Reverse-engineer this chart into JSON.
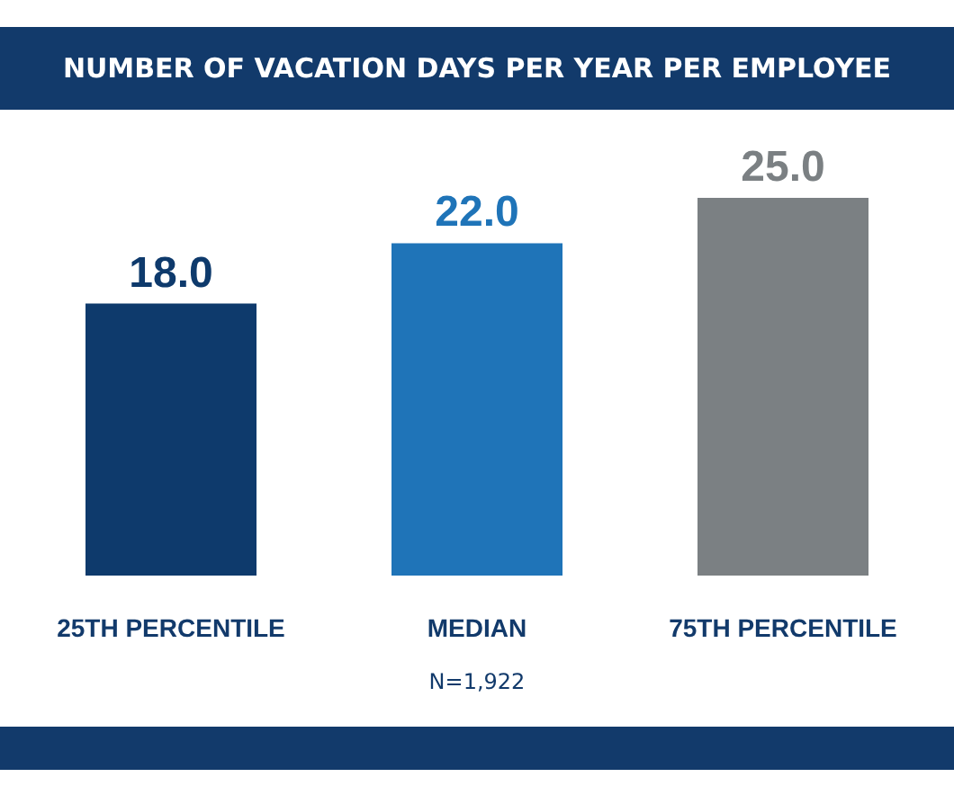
{
  "chart_data": {
    "type": "bar",
    "title": "NUMBER OF VACATION DAYS PER YEAR PER EMPLOYEE",
    "categories": [
      "25TH PERCENTILE",
      "MEDIAN",
      "75TH PERCENTILE"
    ],
    "values": [
      18.0,
      22.0,
      25.0
    ],
    "colors": [
      "#0e3a6c",
      "#1f74b8",
      "#7b8083"
    ],
    "value_labels": [
      "18.0",
      "22.0",
      "25.0"
    ],
    "annotations": [
      "N=1,922"
    ]
  }
}
